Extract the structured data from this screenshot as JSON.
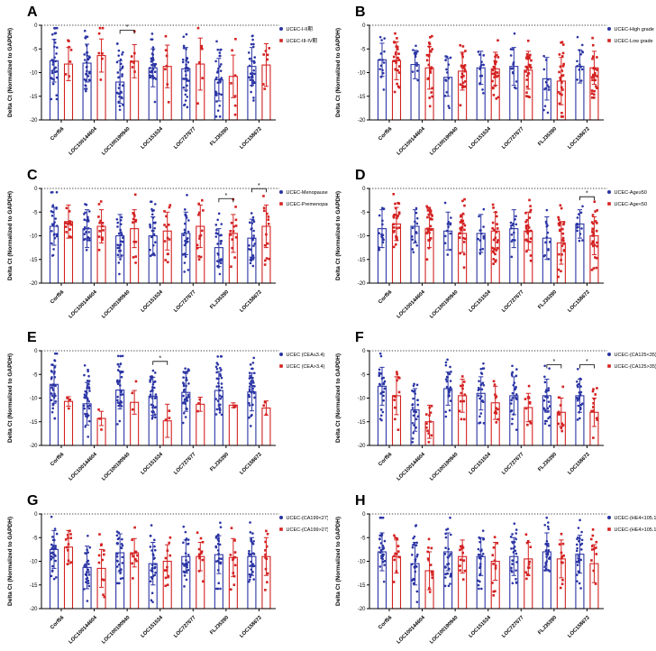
{
  "figure": {
    "background": "#ffffff",
    "ylabel": "Delta Ct (Normalized to GAPDH)"
  },
  "colors": {
    "blue": "#2a34a4",
    "red": "#d42121",
    "axis": "#000000"
  },
  "chart_data": [
    {
      "type": "bar",
      "panel": "A",
      "ylabel": "Delta Ct (Normalized to GAPDH)",
      "ylim": [
        -20,
        0
      ],
      "yticks": [
        0,
        -5,
        -10,
        -15,
        -20
      ],
      "categories": [
        "Corf56",
        "LOC100144604",
        "LOC100190940",
        "LOC151534",
        "LOC727677",
        "FLJ35390",
        "LOC158672"
      ],
      "legend_position": "right",
      "series": [
        {
          "name": "UCEC-I-II期",
          "color_key": "blue",
          "marker": "circle",
          "means": [
            -7.5,
            -8.0,
            -12.0,
            -9.0,
            -9.2,
            -11.5,
            -8.7
          ],
          "sds": [
            4.5,
            4.0,
            4.5,
            4.0,
            4.5,
            4.5,
            4.0
          ],
          "n": [
            33,
            33,
            33,
            33,
            33,
            33,
            33
          ]
        },
        {
          "name": "UCEC-III-IV期",
          "color_key": "red",
          "marker": "square",
          "means": [
            -8.2,
            -6.4,
            -7.6,
            -8.7,
            -8.2,
            -10.8,
            -8.4
          ],
          "sds": [
            3.5,
            3.5,
            3.5,
            4.5,
            5.5,
            4.5,
            4.5
          ],
          "n": [
            7,
            7,
            7,
            7,
            7,
            7,
            7
          ]
        }
      ],
      "significance": [
        {
          "category_index": 2,
          "label": "*"
        }
      ]
    },
    {
      "type": "bar",
      "panel": "B",
      "ylabel": "Delta Ct (Normalized to GAPDH)",
      "ylim": [
        -20,
        0
      ],
      "yticks": [
        0,
        -5,
        -10,
        -15,
        -20
      ],
      "categories": [
        "Corf56",
        "LOC100144604",
        "LOC100190940",
        "LOC151534",
        "LOC727677",
        "FLJ35390",
        "LOC158672"
      ],
      "legend_position": "right",
      "series": [
        {
          "name": "UCEC-High grade",
          "color_key": "blue",
          "marker": "circle",
          "means": [
            -7.3,
            -8.3,
            -11.0,
            -9.0,
            -8.7,
            -11.3,
            -8.7
          ],
          "sds": [
            3.5,
            3.0,
            4.0,
            3.5,
            4.0,
            4.5,
            3.5
          ],
          "n": [
            14,
            14,
            14,
            14,
            14,
            14,
            14
          ]
        },
        {
          "name": "UCEC-Low grade",
          "color_key": "red",
          "marker": "square",
          "means": [
            -7.5,
            -9.0,
            -9.7,
            -9.2,
            -9.5,
            -11.8,
            -9.0
          ],
          "sds": [
            4.0,
            4.5,
            4.0,
            3.5,
            4.0,
            5.0,
            3.5
          ],
          "n": [
            26,
            26,
            26,
            26,
            26,
            26,
            26
          ]
        }
      ],
      "significance": []
    },
    {
      "type": "bar",
      "panel": "C",
      "ylabel": "Delta Ct (Normalized to GAPDH)",
      "ylim": [
        -20,
        0
      ],
      "yticks": [
        0,
        -5,
        -10,
        -15,
        -20
      ],
      "categories": [
        "Corf56",
        "LOC100144604",
        "LOC100190940",
        "LOC151534",
        "LOC727677",
        "FLJ35390",
        "LOC158672"
      ],
      "legend_position": "right",
      "series": [
        {
          "name": "UCEC-Menopause",
          "color_key": "blue",
          "marker": "circle",
          "means": [
            -8.0,
            -8.5,
            -10.0,
            -10.0,
            -9.5,
            -12.5,
            -10.5
          ],
          "sds": [
            4.0,
            4.0,
            4.5,
            4.0,
            4.5,
            4.0,
            4.0
          ],
          "n": [
            26,
            26,
            26,
            26,
            26,
            26,
            26
          ]
        },
        {
          "name": "UCEC-Premenopause",
          "color_key": "red",
          "marker": "square",
          "means": [
            -7.0,
            -8.0,
            -8.5,
            -9.0,
            -8.0,
            -9.5,
            -8.0
          ],
          "sds": [
            3.5,
            3.5,
            4.0,
            4.0,
            4.5,
            4.0,
            4.5
          ],
          "n": [
            14,
            14,
            14,
            14,
            14,
            14,
            14
          ]
        }
      ],
      "significance": [
        {
          "category_index": 5,
          "label": "*"
        },
        {
          "category_index": 6,
          "label": "*"
        }
      ]
    },
    {
      "type": "bar",
      "panel": "D",
      "ylabel": "Delta Ct (Normalized to GAPDH)",
      "ylim": [
        -20,
        0
      ],
      "yticks": [
        0,
        -5,
        -10,
        -15,
        -20
      ],
      "categories": [
        "Corf56",
        "LOC100144604",
        "LOC100190940",
        "LOC151534",
        "LOC727677",
        "FLJ35390",
        "LOC158672"
      ],
      "legend_position": "right",
      "series": [
        {
          "name": "UCEC-Age≥50",
          "color_key": "blue",
          "marker": "circle",
          "means": [
            -8.5,
            -8.0,
            -9.0,
            -9.5,
            -8.5,
            -10.5,
            -7.5
          ],
          "sds": [
            4.0,
            3.5,
            4.0,
            4.0,
            4.0,
            4.5,
            3.0
          ],
          "n": [
            14,
            14,
            14,
            14,
            14,
            14,
            14
          ]
        },
        {
          "name": "UCEC-Age<50",
          "color_key": "red",
          "marker": "square",
          "means": [
            -7.5,
            -8.5,
            -9.5,
            -9.0,
            -9.0,
            -11.5,
            -10.0
          ],
          "sds": [
            3.5,
            4.0,
            4.0,
            4.0,
            4.0,
            4.5,
            4.0
          ],
          "n": [
            26,
            26,
            26,
            26,
            26,
            26,
            26
          ]
        }
      ],
      "significance": [
        {
          "category_index": 6,
          "label": "*"
        }
      ]
    },
    {
      "type": "bar",
      "panel": "E",
      "ylabel": "Delta Ct (Normalized to GAPDH)",
      "ylim": [
        -20,
        0
      ],
      "yticks": [
        0,
        -5,
        -10,
        -15,
        -20
      ],
      "categories": [
        "Corf56",
        "LOC100144604",
        "LOC100190940",
        "LOC151534",
        "LOC727677",
        "FLJ35390",
        "LOC158672"
      ],
      "legend_position": "right",
      "series": [
        {
          "name": "UCEC (CEA≤3.4)",
          "color_key": "blue",
          "marker": "circle",
          "means": [
            -7.1,
            -11.2,
            -8.3,
            -9.6,
            -8.8,
            -8.4,
            -8.7
          ],
          "sds": [
            4.0,
            4.5,
            4.0,
            4.0,
            4.0,
            4.0,
            4.0
          ],
          "n": [
            36,
            36,
            36,
            36,
            36,
            36,
            36
          ]
        },
        {
          "name": "UCEC (CEA>3.4)",
          "color_key": "red",
          "marker": "square",
          "means": [
            -10.7,
            -14.3,
            -10.9,
            -14.8,
            -11.3,
            -11.5,
            -12.1
          ],
          "sds": [
            1.0,
            1.5,
            2.5,
            3.5,
            1.5,
            0.5,
            1.5
          ],
          "n": [
            3,
            3,
            3,
            3,
            3,
            3,
            3
          ]
        }
      ],
      "significance": [
        {
          "category_index": 3,
          "label": "*"
        }
      ]
    },
    {
      "type": "bar",
      "panel": "F",
      "ylabel": "Delta Ct (Normalized to GAPDH)",
      "ylim": [
        -20,
        0
      ],
      "yticks": [
        0,
        -5,
        -10,
        -15,
        -20
      ],
      "categories": [
        "Corf56",
        "LOC100144604",
        "LOC100190940",
        "LOC151534",
        "LOC727677",
        "FLJ35390",
        "LOC158672"
      ],
      "legend_position": "right",
      "series": [
        {
          "name": "UCEC-(CA125<35)",
          "color_key": "blue",
          "marker": "circle",
          "means": [
            -7.5,
            -12.5,
            -8.0,
            -9.0,
            -9.5,
            -9.5,
            -9.5
          ],
          "sds": [
            4.0,
            4.5,
            3.5,
            3.5,
            4.0,
            3.5,
            3.5
          ],
          "n": [
            26,
            26,
            26,
            26,
            26,
            26,
            26
          ]
        },
        {
          "name": "UCEC-(CA125>35)",
          "color_key": "red",
          "marker": "square",
          "means": [
            -9.5,
            -15.0,
            -9.5,
            -11.0,
            -12.0,
            -13.0,
            -13.0
          ],
          "sds": [
            4.0,
            3.5,
            3.5,
            3.5,
            3.0,
            3.0,
            3.0
          ],
          "n": [
            12,
            12,
            12,
            12,
            12,
            12,
            12
          ]
        }
      ],
      "significance": [
        {
          "category_index": 5,
          "label": "*"
        },
        {
          "category_index": 6,
          "label": "*"
        }
      ]
    },
    {
      "type": "bar",
      "panel": "G",
      "ylabel": "Delta Ct (Normalized to GAPDH)",
      "ylim": [
        -20,
        0
      ],
      "yticks": [
        0,
        -5,
        -10,
        -15,
        -20
      ],
      "categories": [
        "Corf56",
        "LOC100144604",
        "LOC100190940",
        "LOC151534",
        "LOC727677",
        "FLJ35390",
        "LOC158672"
      ],
      "legend_position": "right",
      "series": [
        {
          "name": "UCEC-(CA199<27)",
          "color_key": "blue",
          "marker": "circle",
          "means": [
            -7.5,
            -11.3,
            -8.2,
            -10.5,
            -9.0,
            -8.6,
            -9.0
          ],
          "sds": [
            4.0,
            4.5,
            4.0,
            4.5,
            3.5,
            4.0,
            4.0
          ],
          "n": [
            28,
            28,
            28,
            28,
            28,
            28,
            28
          ]
        },
        {
          "name": "UCEC-(CA199>27)",
          "color_key": "red",
          "marker": "square",
          "means": [
            -7.0,
            -11.5,
            -8.2,
            -10.0,
            -9.0,
            -9.2,
            -9.0
          ],
          "sds": [
            3.5,
            4.0,
            3.0,
            3.5,
            3.0,
            4.0,
            4.0
          ],
          "n": [
            12,
            12,
            12,
            12,
            12,
            12,
            12
          ]
        }
      ],
      "significance": []
    },
    {
      "type": "bar",
      "panel": "H",
      "ylabel": "Delta Ct (Normalized to GAPDH)",
      "ylim": [
        -20,
        0
      ],
      "yticks": [
        0,
        -5,
        -10,
        -15,
        -20
      ],
      "categories": [
        "Corf56",
        "LOC100144604",
        "LOC100190940",
        "LOC151534",
        "LOC727677",
        "FLJ35390",
        "LOC158672"
      ],
      "legend_position": "right",
      "series": [
        {
          "name": "UCEC-(HE4<105.1)",
          "color_key": "blue",
          "marker": "circle",
          "means": [
            -8.0,
            -10.5,
            -8.0,
            -9.0,
            -9.0,
            -8.0,
            -8.5
          ],
          "sds": [
            4.0,
            4.5,
            4.0,
            4.0,
            4.0,
            4.0,
            4.0
          ],
          "n": [
            28,
            28,
            28,
            28,
            28,
            28,
            28
          ]
        },
        {
          "name": "UCEC-(HE4>105.1)",
          "color_key": "red",
          "marker": "square",
          "means": [
            -9.0,
            -12.0,
            -9.0,
            -10.0,
            -9.5,
            -9.5,
            -10.5
          ],
          "sds": [
            3.5,
            4.0,
            3.5,
            4.0,
            3.5,
            4.0,
            4.0
          ],
          "n": [
            12,
            12,
            12,
            12,
            12,
            12,
            12
          ]
        }
      ],
      "significance": []
    }
  ]
}
